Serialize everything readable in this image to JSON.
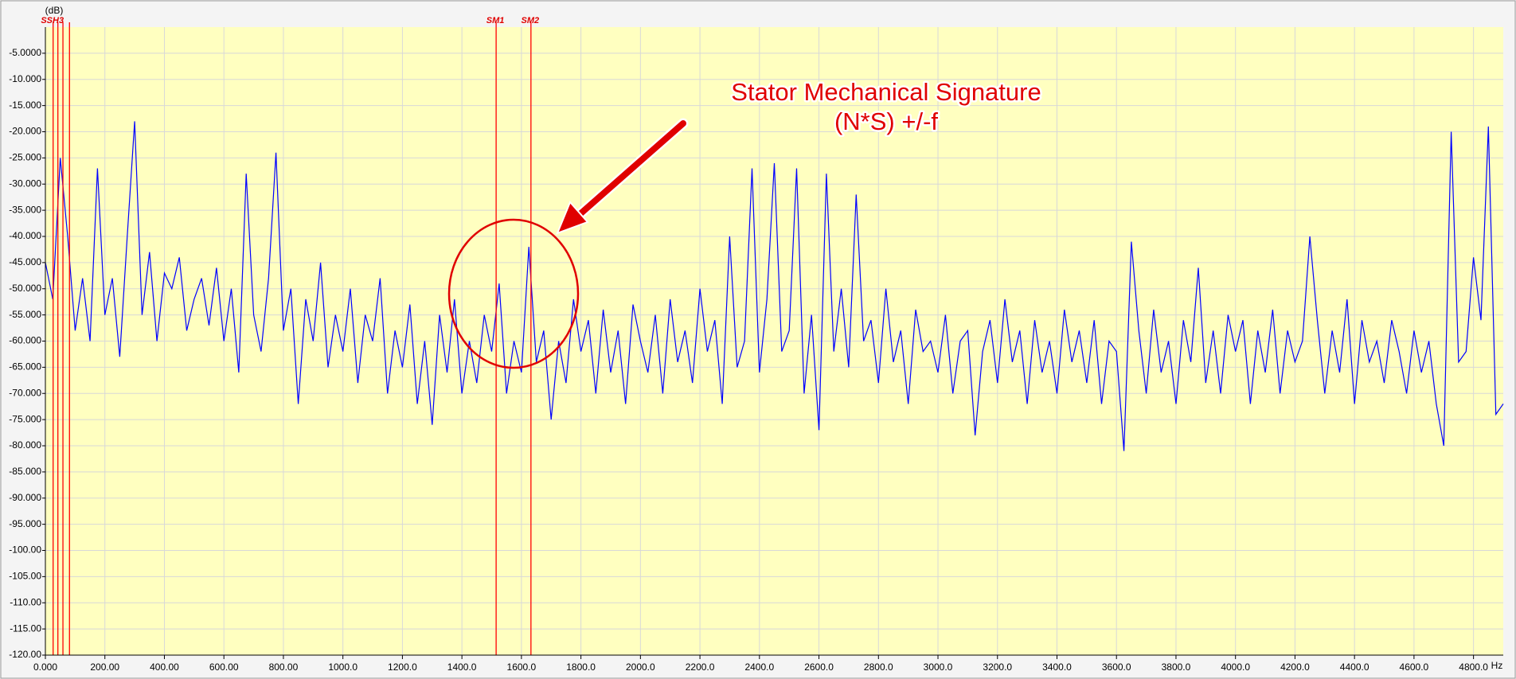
{
  "chart_data": {
    "type": "line",
    "y_label": "(dB)",
    "x_label": "Hz",
    "color": "#0000ff",
    "background": "#ffffc0",
    "grid": true,
    "grid_color": "#d8d8d8",
    "xlim": [
      0,
      4900
    ],
    "ylim": [
      -120,
      0
    ],
    "xticks": [
      {
        "value": 0,
        "label": "0.000"
      },
      {
        "value": 200,
        "label": "200.00"
      },
      {
        "value": 400,
        "label": "400.00"
      },
      {
        "value": 600,
        "label": "600.00"
      },
      {
        "value": 800,
        "label": "800.00"
      },
      {
        "value": 1000,
        "label": "1000.0"
      },
      {
        "value": 1200,
        "label": "1200.0"
      },
      {
        "value": 1400,
        "label": "1400.0"
      },
      {
        "value": 1600,
        "label": "1600.0"
      },
      {
        "value": 1800,
        "label": "1800.0"
      },
      {
        "value": 2000,
        "label": "2000.0"
      },
      {
        "value": 2200,
        "label": "2200.0"
      },
      {
        "value": 2400,
        "label": "2400.0"
      },
      {
        "value": 2600,
        "label": "2600.0"
      },
      {
        "value": 2800,
        "label": "2800.0"
      },
      {
        "value": 3000,
        "label": "3000.0"
      },
      {
        "value": 3200,
        "label": "3200.0"
      },
      {
        "value": 3400,
        "label": "3400.0"
      },
      {
        "value": 3600,
        "label": "3600.0"
      },
      {
        "value": 3800,
        "label": "3800.0"
      },
      {
        "value": 4000,
        "label": "4000.0"
      },
      {
        "value": 4200,
        "label": "4200.0"
      },
      {
        "value": 4400,
        "label": "4400.0"
      },
      {
        "value": 4600,
        "label": "4600.0"
      },
      {
        "value": 4800,
        "label": "4800.0"
      }
    ],
    "yticks": [
      {
        "value": -5,
        "label": "-5.0000"
      },
      {
        "value": -10,
        "label": "-10.000"
      },
      {
        "value": -15,
        "label": "-15.000"
      },
      {
        "value": -20,
        "label": "-20.000"
      },
      {
        "value": -25,
        "label": "-25.000"
      },
      {
        "value": -30,
        "label": "-30.000"
      },
      {
        "value": -35,
        "label": "-35.000"
      },
      {
        "value": -40,
        "label": "-40.000"
      },
      {
        "value": -45,
        "label": "-45.000"
      },
      {
        "value": -50,
        "label": "-50.000"
      },
      {
        "value": -55,
        "label": "-55.000"
      },
      {
        "value": -60,
        "label": "-60.000"
      },
      {
        "value": -65,
        "label": "-65.000"
      },
      {
        "value": -70,
        "label": "-70.000"
      },
      {
        "value": -75,
        "label": "-75.000"
      },
      {
        "value": -80,
        "label": "-80.000"
      },
      {
        "value": -85,
        "label": "-85.000"
      },
      {
        "value": -90,
        "label": "-90.000"
      },
      {
        "value": -95,
        "label": "-95.000"
      },
      {
        "value": -100,
        "label": "-100.00"
      },
      {
        "value": -105,
        "label": "-105.00"
      },
      {
        "value": -110,
        "label": "-110.00"
      },
      {
        "value": -115,
        "label": "-115.00"
      },
      {
        "value": -120,
        "label": "-120.00"
      }
    ],
    "markers": [
      {
        "label": "SSH3",
        "x": [
          26,
          42,
          59,
          81
        ],
        "color": "#ff0000"
      },
      {
        "label": "SM1",
        "x": [
          1515
        ],
        "color": "#ff0000"
      },
      {
        "label": "SM2",
        "x": [
          1632
        ],
        "color": "#ff0000"
      }
    ],
    "annotations": [
      "Stator Mechanical Signature",
      "(N*S) +/-f"
    ],
    "x": [
      0,
      25,
      50,
      75,
      100,
      125,
      150,
      175,
      200,
      225,
      250,
      275,
      300,
      325,
      350,
      375,
      400,
      425,
      450,
      475,
      500,
      525,
      550,
      575,
      600,
      625,
      650,
      675,
      700,
      725,
      750,
      775,
      800,
      825,
      850,
      875,
      900,
      925,
      950,
      975,
      1000,
      1025,
      1050,
      1075,
      1100,
      1125,
      1150,
      1175,
      1200,
      1225,
      1250,
      1275,
      1300,
      1325,
      1350,
      1375,
      1400,
      1425,
      1450,
      1475,
      1500,
      1525,
      1550,
      1575,
      1600,
      1625,
      1650,
      1675,
      1700,
      1725,
      1750,
      1775,
      1800,
      1825,
      1850,
      1875,
      1900,
      1925,
      1950,
      1975,
      2000,
      2025,
      2050,
      2075,
      2100,
      2125,
      2150,
      2175,
      2200,
      2225,
      2250,
      2275,
      2300,
      2325,
      2350,
      2375,
      2400,
      2425,
      2450,
      2475,
      2500,
      2525,
      2550,
      2575,
      2600,
      2625,
      2650,
      2675,
      2700,
      2725,
      2750,
      2775,
      2800,
      2825,
      2850,
      2875,
      2900,
      2925,
      2950,
      2975,
      3000,
      3025,
      3050,
      3075,
      3100,
      3125,
      3150,
      3175,
      3200,
      3225,
      3250,
      3275,
      3300,
      3325,
      3350,
      3375,
      3400,
      3425,
      3450,
      3475,
      3500,
      3525,
      3550,
      3575,
      3600,
      3625,
      3650,
      3675,
      3700,
      3725,
      3750,
      3775,
      3800,
      3825,
      3850,
      3875,
      3900,
      3925,
      3950,
      3975,
      4000,
      4025,
      4050,
      4075,
      4100,
      4125,
      4150,
      4175,
      4200,
      4225,
      4250,
      4275,
      4300,
      4325,
      4350,
      4375,
      4400,
      4425,
      4450,
      4475,
      4500,
      4525,
      4550,
      4575,
      4600,
      4625,
      4650,
      4675,
      4700,
      4725,
      4750,
      4775,
      4800,
      4825,
      4850,
      4875,
      4900
    ],
    "values": [
      -45,
      -52,
      -25,
      -40,
      -58,
      -48,
      -60,
      -27,
      -55,
      -48,
      -63,
      -40,
      -18,
      -55,
      -43,
      -60,
      -47,
      -50,
      -44,
      -58,
      -52,
      -48,
      -57,
      -46,
      -60,
      -50,
      -66,
      -28,
      -55,
      -62,
      -48,
      -24,
      -58,
      -50,
      -72,
      -52,
      -60,
      -45,
      -65,
      -55,
      -62,
      -50,
      -68,
      -55,
      -60,
      -48,
      -70,
      -58,
      -65,
      -53,
      -72,
      -60,
      -76,
      -55,
      -66,
      -52,
      -70,
      -60,
      -68,
      -55,
      -62,
      -49,
      -70,
      -60,
      -66,
      -42,
      -64,
      -58,
      -75,
      -60,
      -68,
      -52,
      -62,
      -56,
      -70,
      -54,
      -66,
      -58,
      -72,
      -53,
      -60,
      -66,
      -55,
      -70,
      -52,
      -64,
      -58,
      -68,
      -50,
      -62,
      -56,
      -72,
      -40,
      -65,
      -60,
      -27,
      -66,
      -52,
      -26,
      -62,
      -58,
      -27,
      -70,
      -55,
      -77,
      -28,
      -62,
      -50,
      -65,
      -32,
      -60,
      -56,
      -68,
      -50,
      -64,
      -58,
      -72,
      -54,
      -62,
      -60,
      -66,
      -55,
      -70,
      -60,
      -58,
      -78,
      -62,
      -56,
      -68,
      -52,
      -64,
      -58,
      -72,
      -56,
      -66,
      -60,
      -70,
      -54,
      -64,
      -58,
      -68,
      -56,
      -72,
      -60,
      -62,
      -81,
      -41,
      -58,
      -70,
      -54,
      -66,
      -60,
      -72,
      -56,
      -64,
      -46,
      -68,
      -58,
      -70,
      -55,
      -62,
      -56,
      -72,
      -58,
      -66,
      -54,
      -70,
      -58,
      -64,
      -60,
      -40,
      -56,
      -70,
      -58,
      -66,
      -52,
      -72,
      -56,
      -64,
      -60,
      -68,
      -56,
      -62,
      -70,
      -58,
      -66,
      -60,
      -72,
      -80,
      -20,
      -64,
      -62,
      -44,
      -56,
      -19,
      -74,
      -72
    ]
  }
}
